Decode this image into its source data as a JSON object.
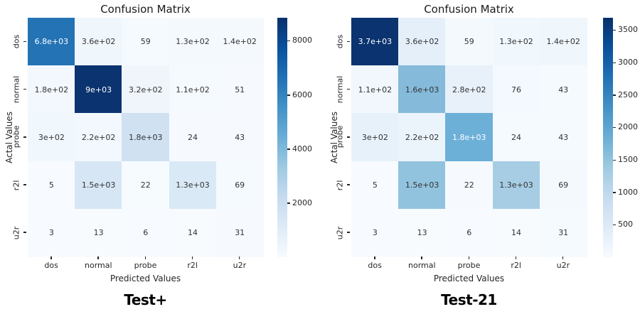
{
  "figure": {
    "background": "#ffffff"
  },
  "panels": [
    {
      "title": "Confusion Matrix",
      "caption": "Test+",
      "xlabel": "Predicted Values",
      "ylabel": "Actal Values",
      "x_ticks": [
        "dos",
        "normal",
        "probe",
        "r2l",
        "u2r"
      ],
      "y_ticks": [
        "dos",
        "normal",
        "probe",
        "r2l",
        "u2r"
      ],
      "cells": [
        [
          {
            "label": "6.8e+03",
            "bg": "#2473b5"
          },
          {
            "label": "3.6e+02",
            "bg": "#eff6fc"
          },
          {
            "label": "59",
            "bg": "#f5fafe"
          },
          {
            "label": "1.3e+02",
            "bg": "#f4f9fe"
          },
          {
            "label": "1.4e+02",
            "bg": "#f4f9fe"
          }
        ],
        [
          {
            "label": "1.8e+02",
            "bg": "#f3f8fe"
          },
          {
            "label": "9e+03",
            "bg": "#0a336f"
          },
          {
            "label": "3.2e+02",
            "bg": "#f0f5fc"
          },
          {
            "label": "1.1e+02",
            "bg": "#f5fafe"
          },
          {
            "label": "51",
            "bg": "#f6fafe"
          }
        ],
        [
          {
            "label": "3e+02",
            "bg": "#f0f7fd"
          },
          {
            "label": "2.2e+02",
            "bg": "#f2f8fd"
          },
          {
            "label": "1.8e+03",
            "bg": "#d0e1f2"
          },
          {
            "label": "24",
            "bg": "#f6fafe"
          },
          {
            "label": "43",
            "bg": "#f6fafe"
          }
        ],
        [
          {
            "label": "5",
            "bg": "#f7fbff"
          },
          {
            "label": "1.5e+03",
            "bg": "#d6e6f4"
          },
          {
            "label": "22",
            "bg": "#f6fbfe"
          },
          {
            "label": "1.3e+03",
            "bg": "#dae9f6"
          },
          {
            "label": "69",
            "bg": "#f5fafe"
          }
        ],
        [
          {
            "label": "3",
            "bg": "#f7fbff"
          },
          {
            "label": "13",
            "bg": "#f7fbfe"
          },
          {
            "label": "6",
            "bg": "#f7fbff"
          },
          {
            "label": "14",
            "bg": "#f7fbfe"
          },
          {
            "label": "31",
            "bg": "#f6fafe"
          }
        ]
      ],
      "colorbar": {
        "ticks": [
          8000,
          6000,
          4000,
          2000
        ],
        "vmin": 0,
        "vmax": 8850
      }
    },
    {
      "title": "Confusion Matrix",
      "caption": "Test-21",
      "xlabel": "Predicted Values",
      "ylabel": "Actal Values",
      "x_ticks": [
        "dos",
        "normal",
        "probe",
        "r2l",
        "u2r"
      ],
      "y_ticks": [
        "dos",
        "normal",
        "probe",
        "r2l",
        "u2r"
      ],
      "cells": [
        [
          {
            "label": "3.7e+03",
            "bg": "#0a336f"
          },
          {
            "label": "3.6e+02",
            "bg": "#e4effa"
          },
          {
            "label": "59",
            "bg": "#f4f9fe"
          },
          {
            "label": "1.3e+02",
            "bg": "#f0f7fd"
          },
          {
            "label": "1.4e+02",
            "bg": "#eff6fc"
          }
        ],
        [
          {
            "label": "1.1e+02",
            "bg": "#f1f7fd"
          },
          {
            "label": "1.6e+03",
            "bg": "#85badb"
          },
          {
            "label": "2.8e+02",
            "bg": "#e8f1fa"
          },
          {
            "label": "76",
            "bg": "#f3f9fe"
          },
          {
            "label": "43",
            "bg": "#f5fafe"
          }
        ],
        [
          {
            "label": "3e+02",
            "bg": "#e7f1fa"
          },
          {
            "label": "2.2e+02",
            "bg": "#ebf3fb"
          },
          {
            "label": "1.8e+03",
            "bg": "#6cb0d8"
          },
          {
            "label": "24",
            "bg": "#f5fafe"
          },
          {
            "label": "43",
            "bg": "#f5fafe"
          }
        ],
        [
          {
            "label": "5",
            "bg": "#f7fbff"
          },
          {
            "label": "1.5e+03",
            "bg": "#92c3de"
          },
          {
            "label": "22",
            "bg": "#f6fafe"
          },
          {
            "label": "1.3e+03",
            "bg": "#a6cde4"
          },
          {
            "label": "69",
            "bg": "#f4f9fe"
          }
        ],
        [
          {
            "label": "3",
            "bg": "#f7fbff"
          },
          {
            "label": "13",
            "bg": "#f7fbfe"
          },
          {
            "label": "6",
            "bg": "#f7fbff"
          },
          {
            "label": "14",
            "bg": "#f7fbfe"
          },
          {
            "label": "31",
            "bg": "#f5fafe"
          }
        ]
      ],
      "colorbar": {
        "ticks": [
          3500,
          3000,
          2500,
          2000,
          1500,
          1000,
          500
        ],
        "vmin": 0,
        "vmax": 3690
      }
    }
  ],
  "chart_data": [
    {
      "type": "heatmap",
      "title": "Confusion Matrix",
      "subtitle": "Test+",
      "xlabel": "Predicted Values",
      "ylabel": "Actal Values",
      "x_categories": [
        "dos",
        "normal",
        "probe",
        "r2l",
        "u2r"
      ],
      "y_categories": [
        "dos",
        "normal",
        "probe",
        "r2l",
        "u2r"
      ],
      "values": [
        [
          6800,
          360,
          59,
          130,
          140
        ],
        [
          180,
          9000,
          320,
          110,
          51
        ],
        [
          300,
          220,
          1800,
          24,
          43
        ],
        [
          5,
          1500,
          22,
          1300,
          69
        ],
        [
          3,
          13,
          6,
          14,
          31
        ]
      ],
      "cell_labels": [
        [
          "6.8e+03",
          "3.6e+02",
          "59",
          "1.3e+02",
          "1.4e+02"
        ],
        [
          "1.8e+02",
          "9e+03",
          "3.2e+02",
          "1.1e+02",
          "51"
        ],
        [
          "3e+02",
          "2.2e+02",
          "1.8e+03",
          "24",
          "43"
        ],
        [
          "5",
          "1.5e+03",
          "22",
          "1.3e+03",
          "69"
        ],
        [
          "3",
          "13",
          "6",
          "14",
          "31"
        ]
      ],
      "colormap": "Blues",
      "colorbar_ticks": [
        8000,
        6000,
        4000,
        2000
      ],
      "colorbar_range": [
        0,
        8850
      ],
      "legend_position": "right-colorbar",
      "grid": false
    },
    {
      "type": "heatmap",
      "title": "Confusion Matrix",
      "subtitle": "Test-21",
      "xlabel": "Predicted Values",
      "ylabel": "Actal Values",
      "x_categories": [
        "dos",
        "normal",
        "probe",
        "r2l",
        "u2r"
      ],
      "y_categories": [
        "dos",
        "normal",
        "probe",
        "r2l",
        "u2r"
      ],
      "values": [
        [
          3700,
          360,
          59,
          130,
          140
        ],
        [
          110,
          1600,
          280,
          76,
          43
        ],
        [
          300,
          220,
          1800,
          24,
          43
        ],
        [
          5,
          1500,
          22,
          1300,
          69
        ],
        [
          3,
          13,
          6,
          14,
          31
        ]
      ],
      "cell_labels": [
        [
          "3.7e+03",
          "3.6e+02",
          "59",
          "1.3e+02",
          "1.4e+02"
        ],
        [
          "1.1e+02",
          "1.6e+03",
          "2.8e+02",
          "76",
          "43"
        ],
        [
          "3e+02",
          "2.2e+02",
          "1.8e+03",
          "24",
          "43"
        ],
        [
          "5",
          "1.5e+03",
          "22",
          "1.3e+03",
          "69"
        ],
        [
          "3",
          "13",
          "6",
          "14",
          "31"
        ]
      ],
      "colormap": "Blues",
      "colorbar_ticks": [
        3500,
        3000,
        2500,
        2000,
        1500,
        1000,
        500
      ],
      "colorbar_range": [
        0,
        3690
      ],
      "legend_position": "right-colorbar",
      "grid": false
    }
  ]
}
